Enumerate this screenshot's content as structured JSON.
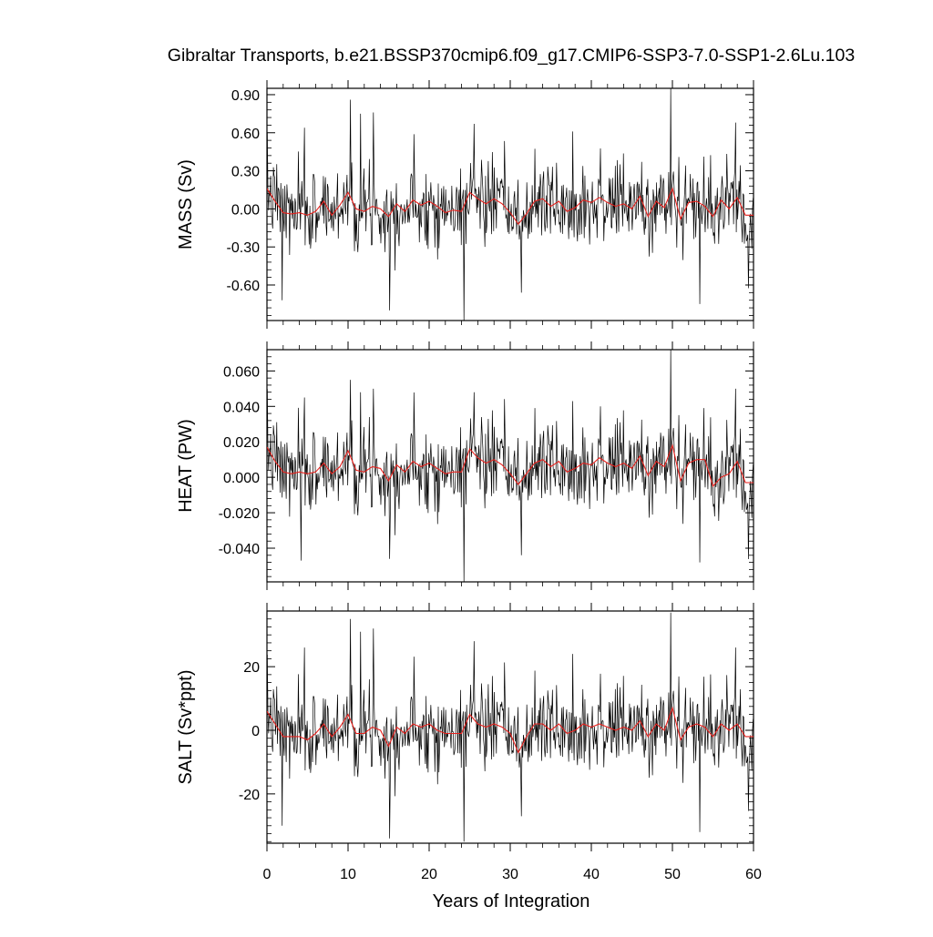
{
  "title": "Gibraltar Transports, b.e21.BSSP370cmip6.f09_g17.CMIP6-SSP3-7.0-SSP1-2.6Lu.103",
  "colors": {
    "raw": "#000000",
    "smooth": "#e8201c"
  },
  "chart_data": [
    {
      "type": "line",
      "ylabel": "MASS (Sv)",
      "xlim": [
        0,
        60
      ],
      "ylim": [
        -0.88,
        0.95
      ],
      "yticks": [
        0.9,
        0.6,
        0.3,
        0.0,
        -0.3,
        -0.6
      ],
      "ytick_labels": [
        "0.90",
        "0.60",
        "0.30",
        "0.00",
        "-0.30",
        "-0.60"
      ],
      "yminor_step": 0.06,
      "grid": false,
      "scale": 0.16,
      "spikes": [
        [
          10.3,
          0.86
        ],
        [
          11.5,
          0.75
        ],
        [
          13.1,
          0.76
        ],
        [
          4.6,
          0.64
        ],
        [
          25.5,
          0.67
        ],
        [
          49.8,
          0.95
        ],
        [
          57.8,
          0.68
        ],
        [
          37.7,
          0.61
        ],
        [
          15.1,
          -0.8
        ],
        [
          24.3,
          -0.88
        ],
        [
          53.4,
          -0.75
        ],
        [
          31.4,
          -0.66
        ],
        [
          1.9,
          -0.72
        ]
      ],
      "series": [
        {
          "name": "",
          "role": "raw",
          "seed": 7
        },
        {
          "name": "",
          "role": "smooth",
          "x": [
            0,
            1,
            2,
            3,
            4,
            5,
            6,
            7,
            8,
            9,
            10,
            11,
            12,
            13,
            14,
            15,
            16,
            17,
            18,
            19,
            20,
            21,
            22,
            23,
            24,
            25,
            26,
            27,
            28,
            29,
            30,
            31,
            32,
            33,
            34,
            35,
            36,
            37,
            38,
            39,
            40,
            41,
            42,
            43,
            44,
            45,
            46,
            47,
            48,
            49,
            50,
            51,
            52,
            53,
            54,
            55,
            56,
            57,
            58,
            59,
            60
          ],
          "values": [
            0.16,
            0.06,
            -0.03,
            -0.04,
            -0.03,
            -0.05,
            -0.02,
            0.06,
            -0.05,
            0.03,
            0.13,
            0.0,
            -0.02,
            0.02,
            0.0,
            -0.06,
            0.04,
            -0.02,
            0.07,
            0.03,
            0.06,
            0.02,
            -0.03,
            -0.01,
            -0.02,
            0.13,
            0.08,
            0.04,
            0.08,
            0.04,
            -0.03,
            -0.12,
            -0.04,
            0.06,
            0.08,
            0.02,
            0.06,
            -0.02,
            0.01,
            0.07,
            0.05,
            0.09,
            0.05,
            0.02,
            0.04,
            0.0,
            0.1,
            -0.06,
            0.06,
            0.01,
            0.16,
            -0.08,
            0.05,
            0.06,
            0.02,
            -0.06,
            0.07,
            0.0,
            0.09,
            -0.05,
            -0.05
          ]
        }
      ]
    },
    {
      "type": "line",
      "ylabel": "HEAT (PW)",
      "xlim": [
        0,
        60
      ],
      "ylim": [
        -0.059,
        0.072
      ],
      "yticks": [
        0.06,
        0.04,
        0.02,
        0.0,
        -0.02,
        -0.04
      ],
      "ytick_labels": [
        "0.060",
        "0.040",
        "0.020",
        "0.000",
        "-0.020",
        "-0.040"
      ],
      "yminor_step": 0.004,
      "grid": false,
      "scale": 0.012,
      "spikes": [
        [
          10.3,
          0.055
        ],
        [
          11.5,
          0.048
        ],
        [
          13.1,
          0.05
        ],
        [
          4.6,
          0.045
        ],
        [
          25.5,
          0.048
        ],
        [
          49.8,
          0.072
        ],
        [
          57.8,
          0.05
        ],
        [
          37.7,
          0.043
        ],
        [
          15.1,
          -0.046
        ],
        [
          24.3,
          -0.059
        ],
        [
          53.4,
          -0.048
        ],
        [
          31.4,
          -0.044
        ],
        [
          4.2,
          -0.047
        ]
      ],
      "series": [
        {
          "name": "",
          "role": "raw",
          "seed": 7
        },
        {
          "name": "",
          "role": "smooth",
          "x": [
            0,
            1,
            2,
            3,
            4,
            5,
            6,
            7,
            8,
            9,
            10,
            11,
            12,
            13,
            14,
            15,
            16,
            17,
            18,
            19,
            20,
            21,
            22,
            23,
            24,
            25,
            26,
            27,
            28,
            29,
            30,
            31,
            32,
            33,
            34,
            35,
            36,
            37,
            38,
            39,
            40,
            41,
            42,
            43,
            44,
            45,
            46,
            47,
            48,
            49,
            50,
            51,
            52,
            53,
            54,
            55,
            56,
            57,
            58,
            59,
            60
          ],
          "values": [
            0.017,
            0.009,
            0.003,
            0.002,
            0.003,
            0.002,
            0.003,
            0.008,
            0.002,
            0.006,
            0.015,
            0.004,
            0.003,
            0.006,
            0.005,
            -0.002,
            0.007,
            0.003,
            0.009,
            0.006,
            0.008,
            0.005,
            0.002,
            0.003,
            0.003,
            0.016,
            0.011,
            0.008,
            0.01,
            0.007,
            0.002,
            -0.004,
            0.002,
            0.008,
            0.01,
            0.006,
            0.009,
            0.003,
            0.005,
            0.008,
            0.007,
            0.011,
            0.008,
            0.006,
            0.008,
            0.005,
            0.012,
            0.001,
            0.009,
            0.006,
            0.018,
            -0.002,
            0.008,
            0.01,
            0.01,
            -0.005,
            0.0,
            0.002,
            0.009,
            -0.003,
            -0.003
          ]
        }
      ]
    },
    {
      "type": "line",
      "ylabel": "SALT (Sv*ppt)",
      "xlim": [
        0,
        60
      ],
      "ylim": [
        -35.5,
        37.5
      ],
      "yticks": [
        20,
        0,
        -20
      ],
      "ytick_labels": [
        "20",
        "0",
        "-20"
      ],
      "yminor_step": 2.5,
      "grid": false,
      "scale": 6.5,
      "spikes": [
        [
          10.3,
          35
        ],
        [
          11.5,
          31
        ],
        [
          13.1,
          32
        ],
        [
          4.6,
          26
        ],
        [
          25.5,
          28
        ],
        [
          49.8,
          37
        ],
        [
          57.8,
          26
        ],
        [
          37.7,
          24
        ],
        [
          15.1,
          -34
        ],
        [
          24.3,
          -35
        ],
        [
          53.4,
          -32
        ],
        [
          31.4,
          -27
        ],
        [
          1.9,
          -30
        ]
      ],
      "series": [
        {
          "name": "",
          "role": "raw",
          "seed": 7
        },
        {
          "name": "",
          "role": "smooth",
          "x": [
            0,
            1,
            2,
            3,
            4,
            5,
            6,
            7,
            8,
            9,
            10,
            11,
            12,
            13,
            14,
            15,
            16,
            17,
            18,
            19,
            20,
            21,
            22,
            23,
            24,
            25,
            26,
            27,
            28,
            29,
            30,
            31,
            32,
            33,
            34,
            35,
            36,
            37,
            38,
            39,
            40,
            41,
            42,
            43,
            44,
            45,
            46,
            47,
            48,
            49,
            50,
            51,
            52,
            53,
            54,
            55,
            56,
            57,
            58,
            59,
            60
          ],
          "values": [
            6,
            2,
            -2,
            -2,
            -2,
            -3,
            -1,
            2,
            -2,
            1,
            5,
            -1,
            -1,
            1,
            0,
            -5,
            1,
            -1,
            2,
            1,
            2,
            0,
            -1,
            -1,
            -1,
            5,
            2,
            1,
            2,
            1,
            -1,
            -7,
            -2,
            2,
            2,
            0,
            2,
            -1,
            0,
            2,
            1,
            2,
            1,
            0,
            1,
            0,
            3,
            -2,
            2,
            0,
            7,
            -3,
            1,
            2,
            1,
            -2,
            2,
            0,
            2,
            -2,
            -2
          ]
        }
      ]
    }
  ],
  "xaxis": {
    "label": "Years of Integration",
    "ticks": [
      0,
      10,
      20,
      30,
      40,
      50,
      60
    ],
    "tick_labels": [
      "0",
      "10",
      "20",
      "30",
      "40",
      "50",
      "60"
    ],
    "minor_step": 2
  }
}
